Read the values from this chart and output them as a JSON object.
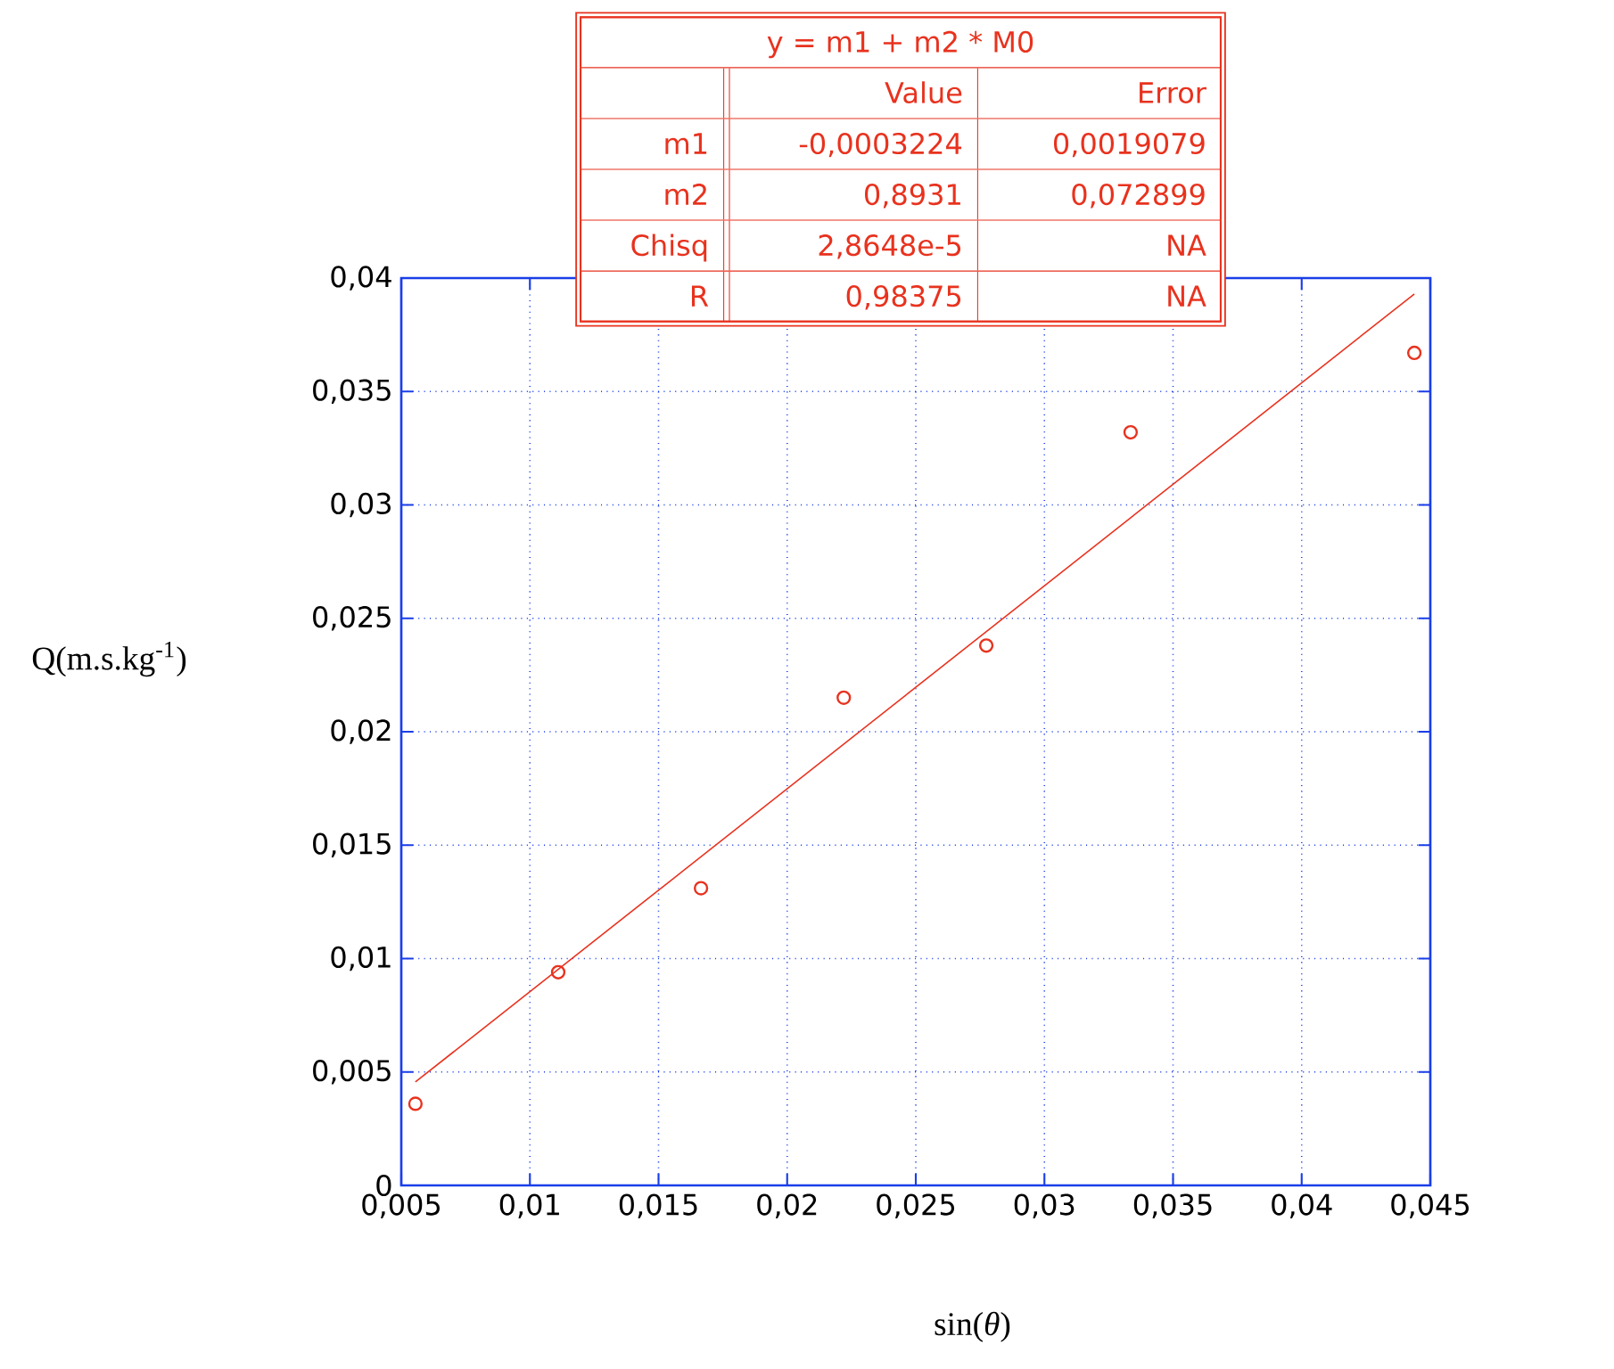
{
  "chart_data": {
    "type": "scatter",
    "xlabel": "sin(*θ*)",
    "ylabel": "Q(m.s.kg$^{-1}$)",
    "xlim": [
      0.005,
      0.045
    ],
    "ylim": [
      0,
      0.04
    ],
    "xticks": [
      {
        "value": 0.005,
        "label": "0,005"
      },
      {
        "value": 0.01,
        "label": "0,01"
      },
      {
        "value": 0.015,
        "label": "0,015"
      },
      {
        "value": 0.02,
        "label": "0,02"
      },
      {
        "value": 0.025,
        "label": "0,025"
      },
      {
        "value": 0.03,
        "label": "0,03"
      },
      {
        "value": 0.035,
        "label": "0,035"
      },
      {
        "value": 0.04,
        "label": "0,04"
      },
      {
        "value": 0.045,
        "label": "0,045"
      }
    ],
    "yticks": [
      0,
      {
        "value": 0.005,
        "label": "0,005"
      },
      {
        "value": 0.01,
        "label": "0,01"
      },
      {
        "value": 0.015,
        "label": "0,015"
      },
      {
        "value": 0.02,
        "label": "0,02"
      },
      {
        "value": 0.025,
        "label": "0,025"
      },
      {
        "value": 0.03,
        "label": "0,03"
      },
      {
        "value": 0.035,
        "label": "0,035"
      },
      {
        "value": 0.04,
        "label": "0,04"
      }
    ],
    "grid": true,
    "series": [
      {
        "color": "#e8321e",
        "marker": "circle",
        "x": [
          0.00555,
          0.0111,
          0.01665,
          0.0222,
          0.02774,
          0.03335,
          0.04438
        ],
        "values": [
          0.0036,
          0.0094,
          0.0131,
          0.0215,
          0.0238,
          0.0332,
          0.0367
        ]
      },
      {
        "type": "line",
        "color": "#e8321e",
        "marker": "none",
        "line_style": "solid",
        "x": [
          0.00555,
          0.04438
        ],
        "values": [
          0.00456,
          0.0393
        ]
      }
    ],
    "annotations": [
      "y = m1 + m2 * M0",
      "Value",
      "Error",
      "m1",
      "-0,0003224",
      "0,0019079",
      "m2",
      "0,8931",
      "0,072899",
      "Chisq",
      "2,8648e-5",
      "NA",
      "R",
      "0,98375",
      "NA"
    ]
  }
}
